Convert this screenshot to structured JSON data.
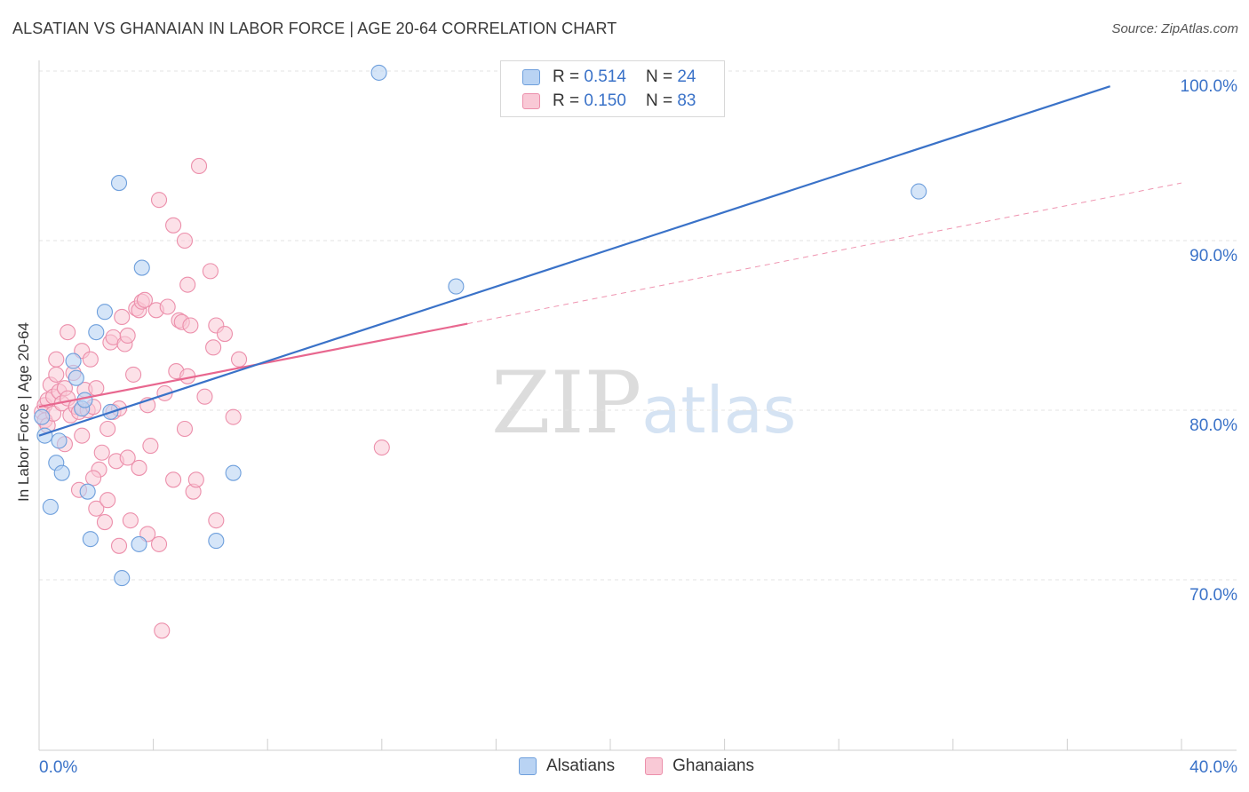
{
  "header": {
    "title": "ALSATIAN VS GHANAIAN IN LABOR FORCE | AGE 20-64 CORRELATION CHART",
    "source": "Source: ZipAtlas.com"
  },
  "watermark": {
    "zip": "ZIP",
    "atlas": "atlas"
  },
  "legend_top": {
    "rows": [
      {
        "r_label": "R = ",
        "r_value": "0.514",
        "n_label": "N = ",
        "n_value": "24"
      },
      {
        "r_label": "R = ",
        "r_value": "0.150",
        "n_label": "N = ",
        "n_value": "83"
      }
    ]
  },
  "legend_bottom": {
    "items": [
      {
        "label": "Alsatians"
      },
      {
        "label": "Ghanaians"
      }
    ]
  },
  "colors": {
    "blue": "#3a72c8",
    "blue_fill": "#b9d3f3",
    "blue_stroke": "#6e9fdc",
    "pink": "#e8678f",
    "pink_fill": "#f9c9d6",
    "pink_stroke": "#ec8fab",
    "axis_label": "#3a72c8",
    "grid": "#e3e3e3"
  },
  "chart_data": {
    "type": "scatter",
    "title": "ALSATIAN VS GHANAIAN IN LABOR FORCE | AGE 20-64 CORRELATION CHART",
    "xlabel": "",
    "ylabel": "In Labor Force | Age 20-64",
    "xlim": [
      0,
      40
    ],
    "ylim": [
      60,
      100
    ],
    "x_tick_labels": [
      "0.0%",
      "40.0%"
    ],
    "y_ticks": [
      70,
      80,
      90,
      100
    ],
    "y_tick_labels": [
      "70.0%",
      "80.0%",
      "90.0%",
      "100.0%"
    ],
    "grid": true,
    "series": [
      {
        "name": "Alsatians",
        "r": 0.514,
        "n": 24,
        "trend": {
          "x": [
            0,
            37.5
          ],
          "y": [
            78.5,
            99.1
          ],
          "style": "solid"
        },
        "points": [
          {
            "x": 0.1,
            "y": 79.6
          },
          {
            "x": 0.2,
            "y": 78.5
          },
          {
            "x": 0.4,
            "y": 74.3
          },
          {
            "x": 0.6,
            "y": 76.9
          },
          {
            "x": 0.7,
            "y": 78.2
          },
          {
            "x": 0.8,
            "y": 76.3
          },
          {
            "x": 1.2,
            "y": 82.9
          },
          {
            "x": 1.3,
            "y": 81.9
          },
          {
            "x": 1.5,
            "y": 80.1
          },
          {
            "x": 1.6,
            "y": 80.6
          },
          {
            "x": 1.7,
            "y": 75.2
          },
          {
            "x": 1.8,
            "y": 72.4
          },
          {
            "x": 2.0,
            "y": 84.6
          },
          {
            "x": 2.3,
            "y": 85.8
          },
          {
            "x": 2.5,
            "y": 79.9
          },
          {
            "x": 2.8,
            "y": 93.4
          },
          {
            "x": 2.9,
            "y": 70.1
          },
          {
            "x": 3.5,
            "y": 72.1
          },
          {
            "x": 3.6,
            "y": 88.4
          },
          {
            "x": 6.2,
            "y": 72.3
          },
          {
            "x": 6.8,
            "y": 76.3
          },
          {
            "x": 11.9,
            "y": 99.9
          },
          {
            "x": 14.6,
            "y": 87.3
          },
          {
            "x": 30.8,
            "y": 92.9
          }
        ]
      },
      {
        "name": "Ghanaians",
        "r": 0.15,
        "n": 83,
        "trend": {
          "x": [
            0,
            15
          ],
          "y": [
            80.2,
            85.1
          ],
          "style": "solid"
        },
        "trend_extension": {
          "x": [
            15,
            40
          ],
          "y": [
            85.1,
            93.4
          ],
          "style": "dashed"
        },
        "points": [
          {
            "x": 0.1,
            "y": 79.9
          },
          {
            "x": 0.2,
            "y": 80.3
          },
          {
            "x": 0.2,
            "y": 79.4
          },
          {
            "x": 0.3,
            "y": 80.6
          },
          {
            "x": 0.3,
            "y": 79.1
          },
          {
            "x": 0.4,
            "y": 81.5
          },
          {
            "x": 0.5,
            "y": 80.8
          },
          {
            "x": 0.5,
            "y": 79.8
          },
          {
            "x": 0.6,
            "y": 82.1
          },
          {
            "x": 0.7,
            "y": 81.1
          },
          {
            "x": 0.8,
            "y": 80.4
          },
          {
            "x": 0.9,
            "y": 81.3
          },
          {
            "x": 1.0,
            "y": 80.7
          },
          {
            "x": 1.1,
            "y": 79.7
          },
          {
            "x": 1.2,
            "y": 82.2
          },
          {
            "x": 1.3,
            "y": 80.2
          },
          {
            "x": 1.4,
            "y": 79.9
          },
          {
            "x": 1.4,
            "y": 75.3
          },
          {
            "x": 1.5,
            "y": 83.5
          },
          {
            "x": 1.5,
            "y": 78.5
          },
          {
            "x": 1.6,
            "y": 81.2
          },
          {
            "x": 1.7,
            "y": 80.0
          },
          {
            "x": 1.8,
            "y": 83.0
          },
          {
            "x": 1.9,
            "y": 80.2
          },
          {
            "x": 2.0,
            "y": 81.3
          },
          {
            "x": 2.0,
            "y": 74.2
          },
          {
            "x": 2.1,
            "y": 76.5
          },
          {
            "x": 2.2,
            "y": 77.5
          },
          {
            "x": 2.3,
            "y": 73.4
          },
          {
            "x": 2.4,
            "y": 78.9
          },
          {
            "x": 2.5,
            "y": 84.0
          },
          {
            "x": 2.6,
            "y": 84.3
          },
          {
            "x": 2.6,
            "y": 79.9
          },
          {
            "x": 2.7,
            "y": 77.0
          },
          {
            "x": 2.8,
            "y": 80.1
          },
          {
            "x": 2.8,
            "y": 72.0
          },
          {
            "x": 2.9,
            "y": 85.5
          },
          {
            "x": 3.0,
            "y": 83.9
          },
          {
            "x": 3.1,
            "y": 84.4
          },
          {
            "x": 3.1,
            "y": 77.2
          },
          {
            "x": 3.2,
            "y": 73.5
          },
          {
            "x": 3.3,
            "y": 82.1
          },
          {
            "x": 3.4,
            "y": 86.0
          },
          {
            "x": 3.5,
            "y": 85.9
          },
          {
            "x": 3.5,
            "y": 76.6
          },
          {
            "x": 3.6,
            "y": 86.4
          },
          {
            "x": 3.7,
            "y": 86.5
          },
          {
            "x": 3.8,
            "y": 80.3
          },
          {
            "x": 3.8,
            "y": 72.7
          },
          {
            "x": 4.1,
            "y": 85.9
          },
          {
            "x": 4.2,
            "y": 92.4
          },
          {
            "x": 4.2,
            "y": 72.1
          },
          {
            "x": 4.3,
            "y": 67.0
          },
          {
            "x": 4.5,
            "y": 86.1
          },
          {
            "x": 4.7,
            "y": 90.9
          },
          {
            "x": 4.7,
            "y": 75.9
          },
          {
            "x": 4.8,
            "y": 82.3
          },
          {
            "x": 4.9,
            "y": 85.3
          },
          {
            "x": 5.0,
            "y": 85.2
          },
          {
            "x": 5.1,
            "y": 78.9
          },
          {
            "x": 5.1,
            "y": 90.0
          },
          {
            "x": 5.2,
            "y": 87.4
          },
          {
            "x": 5.2,
            "y": 82.0
          },
          {
            "x": 5.3,
            "y": 85.0
          },
          {
            "x": 5.4,
            "y": 75.2
          },
          {
            "x": 5.5,
            "y": 75.9
          },
          {
            "x": 5.6,
            "y": 94.4
          },
          {
            "x": 6.0,
            "y": 88.2
          },
          {
            "x": 6.1,
            "y": 83.7
          },
          {
            "x": 6.2,
            "y": 85.0
          },
          {
            "x": 6.2,
            "y": 73.5
          },
          {
            "x": 6.5,
            "y": 84.5
          },
          {
            "x": 6.8,
            "y": 79.6
          },
          {
            "x": 7.0,
            "y": 83.0
          },
          {
            "x": 12.0,
            "y": 77.8
          },
          {
            "x": 0.6,
            "y": 83.0
          },
          {
            "x": 1.0,
            "y": 84.6
          },
          {
            "x": 2.4,
            "y": 74.7
          },
          {
            "x": 3.9,
            "y": 77.9
          },
          {
            "x": 4.4,
            "y": 81.0
          },
          {
            "x": 5.8,
            "y": 80.8
          },
          {
            "x": 0.9,
            "y": 78.0
          },
          {
            "x": 1.9,
            "y": 76.0
          }
        ]
      }
    ]
  }
}
